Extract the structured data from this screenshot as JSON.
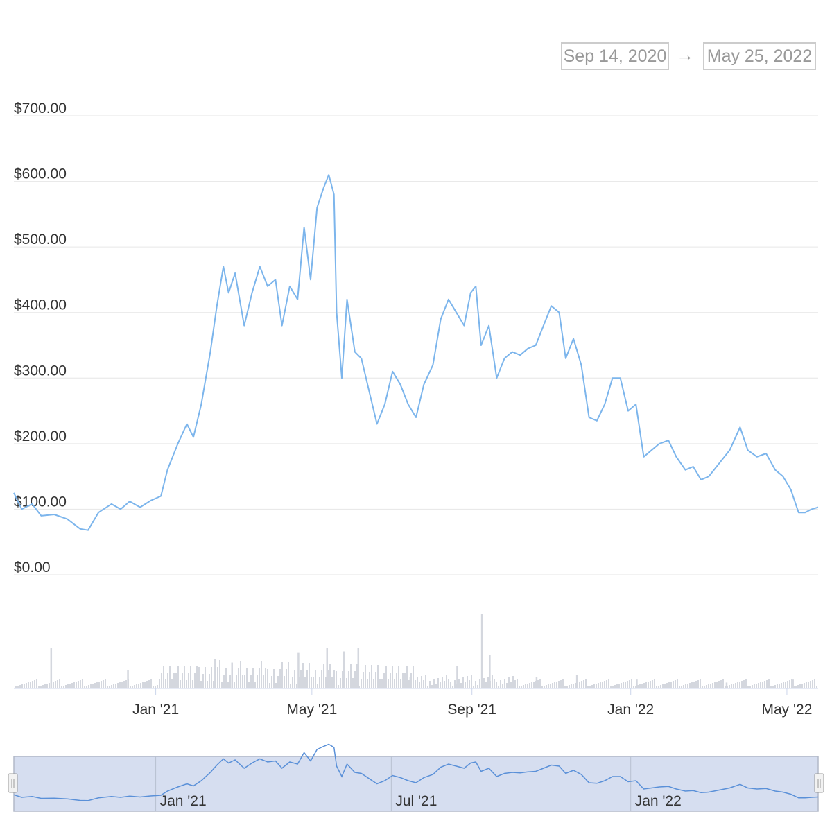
{
  "range_selector": {
    "from": "Sep 14, 2020",
    "arrow": "→",
    "to": "May 25, 2022"
  },
  "chart_data": {
    "type": "line",
    "xlabel": "",
    "ylabel": "",
    "ylim": [
      0,
      700
    ],
    "grid": true,
    "y_ticks": [
      "$700.00",
      "$600.00",
      "$500.00",
      "$400.00",
      "$300.00",
      "$200.00",
      "$100.00",
      "$0.00"
    ],
    "x_ticks": [
      "Jan '21",
      "May '21",
      "Sep '21",
      "Jan '22",
      "May '22"
    ],
    "x_range": [
      "2020-09-14",
      "2022-05-25"
    ],
    "series": [
      {
        "line_color": "#7cb5ec",
        "points": [
          [
            "2020-09-14",
            125
          ],
          [
            "2020-09-20",
            100
          ],
          [
            "2020-09-28",
            108
          ],
          [
            "2020-10-05",
            90
          ],
          [
            "2020-10-15",
            92
          ],
          [
            "2020-10-25",
            85
          ],
          [
            "2020-11-04",
            70
          ],
          [
            "2020-11-10",
            68
          ],
          [
            "2020-11-18",
            95
          ],
          [
            "2020-11-28",
            108
          ],
          [
            "2020-12-05",
            100
          ],
          [
            "2020-12-12",
            112
          ],
          [
            "2020-12-20",
            103
          ],
          [
            "2020-12-28",
            113
          ],
          [
            "2021-01-05",
            120
          ],
          [
            "2021-01-10",
            160
          ],
          [
            "2021-01-18",
            200
          ],
          [
            "2021-01-25",
            230
          ],
          [
            "2021-01-30",
            210
          ],
          [
            "2021-02-05",
            260
          ],
          [
            "2021-02-12",
            340
          ],
          [
            "2021-02-17",
            410
          ],
          [
            "2021-02-22",
            470
          ],
          [
            "2021-02-26",
            430
          ],
          [
            "2021-03-03",
            460
          ],
          [
            "2021-03-10",
            380
          ],
          [
            "2021-03-16",
            430
          ],
          [
            "2021-03-22",
            470
          ],
          [
            "2021-03-28",
            440
          ],
          [
            "2021-04-03",
            450
          ],
          [
            "2021-04-08",
            380
          ],
          [
            "2021-04-14",
            440
          ],
          [
            "2021-04-20",
            420
          ],
          [
            "2021-04-25",
            530
          ],
          [
            "2021-04-30",
            450
          ],
          [
            "2021-05-05",
            560
          ],
          [
            "2021-05-10",
            590
          ],
          [
            "2021-05-14",
            610
          ],
          [
            "2021-05-18",
            580
          ],
          [
            "2021-05-20",
            400
          ],
          [
            "2021-05-24",
            300
          ],
          [
            "2021-05-28",
            420
          ],
          [
            "2021-06-03",
            340
          ],
          [
            "2021-06-08",
            330
          ],
          [
            "2021-06-14",
            280
          ],
          [
            "2021-06-20",
            230
          ],
          [
            "2021-06-26",
            260
          ],
          [
            "2021-07-02",
            310
          ],
          [
            "2021-07-08",
            290
          ],
          [
            "2021-07-14",
            260
          ],
          [
            "2021-07-20",
            240
          ],
          [
            "2021-07-26",
            290
          ],
          [
            "2021-08-02",
            320
          ],
          [
            "2021-08-08",
            390
          ],
          [
            "2021-08-14",
            420
          ],
          [
            "2021-08-20",
            400
          ],
          [
            "2021-08-26",
            380
          ],
          [
            "2021-08-31",
            430
          ],
          [
            "2021-09-04",
            440
          ],
          [
            "2021-09-08",
            350
          ],
          [
            "2021-09-14",
            380
          ],
          [
            "2021-09-20",
            300
          ],
          [
            "2021-09-26",
            330
          ],
          [
            "2021-10-02",
            340
          ],
          [
            "2021-10-08",
            335
          ],
          [
            "2021-10-14",
            345
          ],
          [
            "2021-10-20",
            350
          ],
          [
            "2021-10-26",
            380
          ],
          [
            "2021-11-01",
            410
          ],
          [
            "2021-11-07",
            400
          ],
          [
            "2021-11-12",
            330
          ],
          [
            "2021-11-18",
            360
          ],
          [
            "2021-11-24",
            320
          ],
          [
            "2021-11-30",
            240
          ],
          [
            "2021-12-06",
            235
          ],
          [
            "2021-12-12",
            260
          ],
          [
            "2021-12-18",
            300
          ],
          [
            "2021-12-24",
            300
          ],
          [
            "2021-12-30",
            250
          ],
          [
            "2022-01-05",
            260
          ],
          [
            "2022-01-11",
            180
          ],
          [
            "2022-01-17",
            190
          ],
          [
            "2022-01-23",
            200
          ],
          [
            "2022-01-30",
            205
          ],
          [
            "2022-02-05",
            180
          ],
          [
            "2022-02-12",
            160
          ],
          [
            "2022-02-18",
            165
          ],
          [
            "2022-02-24",
            145
          ],
          [
            "2022-03-02",
            150
          ],
          [
            "2022-03-10",
            170
          ],
          [
            "2022-03-18",
            190
          ],
          [
            "2022-03-26",
            225
          ],
          [
            "2022-04-01",
            190
          ],
          [
            "2022-04-08",
            180
          ],
          [
            "2022-04-15",
            185
          ],
          [
            "2022-04-22",
            160
          ],
          [
            "2022-04-28",
            150
          ],
          [
            "2022-05-04",
            130
          ],
          [
            "2022-05-10",
            95
          ],
          [
            "2022-05-15",
            95
          ],
          [
            "2022-05-20",
            100
          ],
          [
            "2022-05-25",
            103
          ]
        ]
      }
    ],
    "volume": {
      "bar_color": "#d4d7de",
      "relative": [
        [
          "2020-10-12",
          0.55
        ],
        [
          "2020-12-10",
          0.25
        ],
        [
          "2021-01-15",
          0.18
        ],
        [
          "2021-02-15",
          0.4
        ],
        [
          "2021-02-28",
          0.35
        ],
        [
          "2021-04-20",
          0.48
        ],
        [
          "2021-05-12",
          0.55
        ],
        [
          "2021-05-25",
          0.5
        ],
        [
          "2021-06-05",
          0.55
        ],
        [
          "2021-06-25",
          0.2
        ],
        [
          "2021-07-15",
          0.15
        ],
        [
          "2021-08-20",
          0.3
        ],
        [
          "2021-09-08",
          1.0
        ],
        [
          "2021-09-14",
          0.45
        ],
        [
          "2021-10-20",
          0.15
        ],
        [
          "2021-11-20",
          0.18
        ],
        [
          "2022-01-05",
          0.12
        ],
        [
          "2022-03-15",
          0.08
        ],
        [
          "2022-05-05",
          0.12
        ]
      ]
    },
    "navigator": {
      "ticks": [
        "Jan '21",
        "Jul '21",
        "Jan '22"
      ]
    }
  }
}
